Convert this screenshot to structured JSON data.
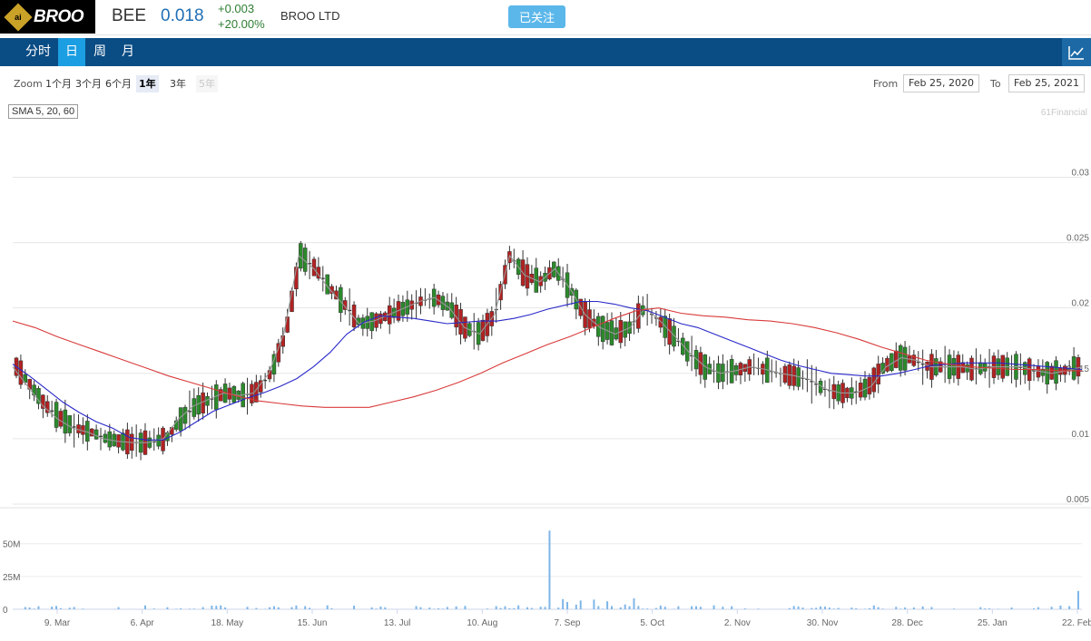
{
  "header": {
    "logo_text": "BROO",
    "logo_badge": "ai",
    "ticker": "BEE",
    "price": "0.018",
    "change_abs": "+0.003",
    "change_pct": "+20.00%",
    "company": "BROO LTD",
    "follow_label": "已关注"
  },
  "tabs": [
    {
      "label": "分时",
      "active": false
    },
    {
      "label": "日",
      "active": true
    },
    {
      "label": "周",
      "active": false
    },
    {
      "label": "月",
      "active": false
    }
  ],
  "toolbar": {
    "zoom_label": "Zoom",
    "zoom_options": [
      {
        "label": "1个月",
        "state": "normal"
      },
      {
        "label": "3个月",
        "state": "normal"
      },
      {
        "label": "6个月",
        "state": "normal"
      },
      {
        "label": "1年",
        "state": "selected"
      },
      {
        "label": "3年",
        "state": "normal"
      },
      {
        "label": "5年",
        "state": "disabled"
      }
    ],
    "from_label": "From",
    "from_value": "Feb 25, 2020",
    "to_label": "To",
    "to_value": "Feb 25, 2021"
  },
  "legend_label": "SMA 5, 20, 60",
  "credit": "61Financial",
  "colors": {
    "up": "#2b8a2b",
    "down": "#b22222",
    "sma5": "#9a9a9a",
    "sma20": "#2929c9",
    "sma60": "#d93a3a",
    "volume": "#7eb6e8",
    "nav": "#0a4c84",
    "accent": "#1b9ee2"
  },
  "chart_data": {
    "type": "candlestick",
    "price_ticks": [
      "0.005",
      "0.01",
      "0.015",
      "0.02",
      "0.025",
      "0.03"
    ],
    "price_range": [
      0.005,
      0.0335
    ],
    "volume_ticks": [
      "0",
      "25M",
      "50M"
    ],
    "volume_range": [
      0,
      65
    ],
    "x_ticks": [
      "9. Mar",
      "6. Apr",
      "18. May",
      "15. Jun",
      "13. Jul",
      "10. Aug",
      "7. Sep",
      "5. Oct",
      "2. Nov",
      "30. Nov",
      "28. Dec",
      "25. Jan",
      "22. Feb"
    ],
    "series": [
      {
        "name": "SMA 5",
        "values": [
          0.0155,
          0.014,
          0.0125,
          0.0115,
          0.0108,
          0.0105,
          0.01,
          0.0098,
          0.0097,
          0.0097,
          0.01,
          0.0115,
          0.0125,
          0.013,
          0.0135,
          0.0133,
          0.0135,
          0.015,
          0.018,
          0.024,
          0.023,
          0.0215,
          0.0202,
          0.0188,
          0.019,
          0.0195,
          0.02,
          0.0205,
          0.0208,
          0.02,
          0.0185,
          0.018,
          0.0195,
          0.024,
          0.0225,
          0.022,
          0.023,
          0.0215,
          0.0195,
          0.0185,
          0.018,
          0.0185,
          0.02,
          0.019,
          0.0178,
          0.0165,
          0.0155,
          0.015,
          0.0152,
          0.0155,
          0.0153,
          0.015,
          0.0148,
          0.0145,
          0.0138,
          0.0135,
          0.0135,
          0.014,
          0.0155,
          0.0162,
          0.016,
          0.0155,
          0.0155,
          0.0155,
          0.0153,
          0.0155,
          0.0155,
          0.0155,
          0.0152,
          0.015,
          0.0152,
          0.0155
        ]
      },
      {
        "name": "SMA 20",
        "values": [
          0.0157,
          0.0148,
          0.0138,
          0.0128,
          0.012,
          0.0113,
          0.0108,
          0.0101,
          0.0099,
          0.0099,
          0.0105,
          0.0113,
          0.0121,
          0.0126,
          0.0131,
          0.0135,
          0.014,
          0.0146,
          0.0155,
          0.0166,
          0.018,
          0.0189,
          0.0194,
          0.0193,
          0.0192,
          0.019,
          0.0188,
          0.0189,
          0.019,
          0.019,
          0.0192,
          0.0195,
          0.0199,
          0.0202,
          0.0205,
          0.0205,
          0.0203,
          0.02,
          0.0198,
          0.0193,
          0.0188,
          0.0185,
          0.018,
          0.0175,
          0.017,
          0.0165,
          0.016,
          0.0156,
          0.0153,
          0.015,
          0.0149,
          0.0148,
          0.0148,
          0.015,
          0.0153,
          0.0156,
          0.0157,
          0.0158,
          0.0158,
          0.0158,
          0.0157,
          0.0156,
          0.0155,
          0.0154,
          0.0153
        ]
      },
      {
        "name": "SMA 60",
        "values": [
          0.019,
          0.0185,
          0.0178,
          0.0172,
          0.0166,
          0.016,
          0.0154,
          0.0148,
          0.0143,
          0.0138,
          0.0133,
          0.0129,
          0.0127,
          0.0125,
          0.0124,
          0.0124,
          0.0124,
          0.0128,
          0.0132,
          0.0137,
          0.0143,
          0.015,
          0.0158,
          0.0165,
          0.0172,
          0.0178,
          0.0185,
          0.0192,
          0.0198,
          0.02,
          0.0196,
          0.0194,
          0.0193,
          0.0191,
          0.019,
          0.0188,
          0.0185,
          0.0181,
          0.0176,
          0.017,
          0.0165,
          0.016,
          0.0157,
          0.0155,
          0.0154,
          0.0153,
          0.0153,
          0.0152,
          0.0152
        ]
      }
    ]
  }
}
